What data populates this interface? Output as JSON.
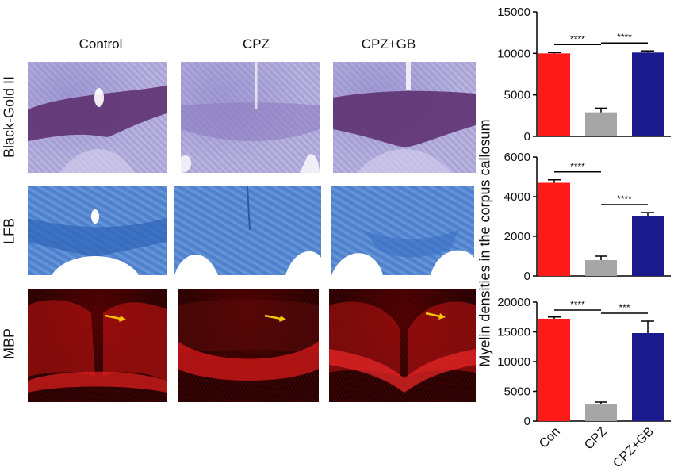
{
  "columns": [
    "Control",
    "CPZ",
    "CPZ+GB"
  ],
  "rows": [
    "Black-Gold II",
    "LFB",
    "MBP"
  ],
  "shared_ylabel": "Myelin densities in the corpus callosum",
  "colors": {
    "Con": "#ff1a1a",
    "CPZ": "#a6a6a6",
    "CPZ+GB": "#1a1a8c",
    "arrow": "#f5c400"
  },
  "chart_data": [
    {
      "type": "bar",
      "categories": [
        "Con",
        "CPZ",
        "CPZ+GB"
      ],
      "values": [
        10000,
        2900,
        10100
      ],
      "errors": [
        100,
        500,
        200
      ],
      "ylim": [
        0,
        15000
      ],
      "yticks": [
        "0",
        "5000",
        "10000",
        "15000"
      ],
      "significance": [
        {
          "from": 0,
          "to": 1,
          "label": "****"
        },
        {
          "from": 1,
          "to": 2,
          "label": "****"
        }
      ]
    },
    {
      "type": "bar",
      "categories": [
        "Con",
        "CPZ",
        "CPZ+GB"
      ],
      "values": [
        4700,
        800,
        3000
      ],
      "errors": [
        150,
        200,
        200
      ],
      "ylim": [
        0,
        6000
      ],
      "yticks": [
        "0",
        "2000",
        "4000",
        "6000"
      ],
      "significance": [
        {
          "from": 0,
          "to": 1,
          "label": "****"
        },
        {
          "from": 1,
          "to": 2,
          "label": "****"
        }
      ]
    },
    {
      "type": "bar",
      "categories": [
        "Con",
        "CPZ",
        "CPZ+GB"
      ],
      "values": [
        17200,
        2800,
        14800
      ],
      "errors": [
        300,
        400,
        2000
      ],
      "ylim": [
        0,
        20000
      ],
      "yticks": [
        "0",
        "5000",
        "10000",
        "15000",
        "20000"
      ],
      "xticks": [
        "Con",
        "CPZ",
        "CPZ+GB"
      ],
      "significance": [
        {
          "from": 0,
          "to": 1,
          "label": "****"
        },
        {
          "from": 1,
          "to": 2,
          "label": "***"
        }
      ]
    }
  ]
}
